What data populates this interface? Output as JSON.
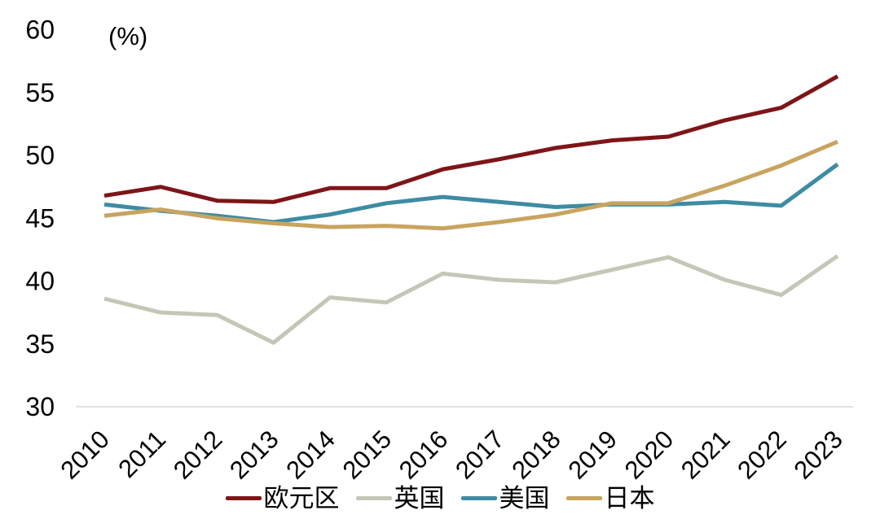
{
  "chart_data": {
    "type": "line",
    "title": "",
    "unit_label": "(%)",
    "x": [
      "2010",
      "2011",
      "2012",
      "2013",
      "2014",
      "2015",
      "2016",
      "2017",
      "2018",
      "2019",
      "2020",
      "2021",
      "2022",
      "2023"
    ],
    "y_ticks": [
      60,
      55,
      50,
      45,
      40,
      35,
      30
    ],
    "ylim": [
      30,
      60
    ],
    "grid": false,
    "legend_position": "bottom-center",
    "axis_color": "#d9d9d9",
    "text_color": "#000000",
    "series": [
      {
        "id": "eurozone",
        "name": "欧元区",
        "color": "#7e1518",
        "values": [
          46.8,
          47.5,
          46.4,
          46.3,
          47.4,
          47.4,
          48.9,
          49.7,
          50.6,
          51.2,
          51.5,
          52.8,
          53.8,
          56.3
        ]
      },
      {
        "id": "uk",
        "name": "英国",
        "color": "#c6c6b8",
        "values": [
          38.6,
          37.5,
          37.3,
          35.1,
          38.7,
          38.3,
          40.6,
          40.1,
          39.9,
          40.9,
          41.9,
          40.1,
          38.9,
          42.0
        ]
      },
      {
        "id": "us",
        "name": "美国",
        "color": "#3d8ca3",
        "values": [
          46.1,
          45.6,
          45.2,
          44.7,
          45.3,
          46.2,
          46.7,
          46.3,
          45.9,
          46.1,
          46.1,
          46.3,
          46.0,
          49.3
        ]
      },
      {
        "id": "japan",
        "name": "日本",
        "color": "#c8a45f",
        "values": [
          45.2,
          45.7,
          45.0,
          44.6,
          44.3,
          44.4,
          44.2,
          44.7,
          45.3,
          46.2,
          46.2,
          47.6,
          49.2,
          51.1
        ]
      }
    ]
  }
}
